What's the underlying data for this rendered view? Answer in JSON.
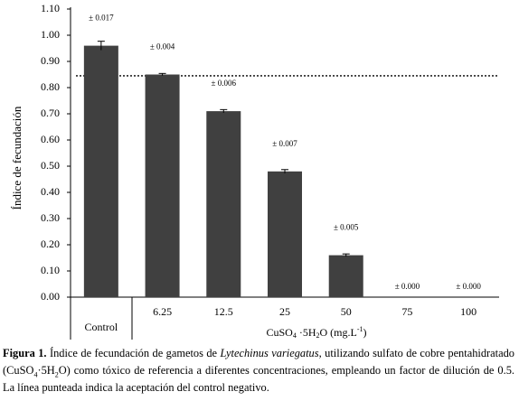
{
  "chart_data": {
    "type": "bar",
    "y_label": "Índice de fecundación",
    "categories": [
      "Control",
      "6.25",
      "12.5",
      "25",
      "50",
      "75",
      "100"
    ],
    "values": [
      0.96,
      0.85,
      0.71,
      0.48,
      0.16,
      0,
      0
    ],
    "errors": [
      0.017,
      0.004,
      0.006,
      0.007,
      0.005,
      0.0,
      0.0
    ],
    "error_labels": [
      "± 0.017",
      "± 0.004",
      "± 0.006",
      "± 0.007",
      "± 0.005",
      "± 0.000",
      "± 0.000"
    ],
    "color": "#404040",
    "reference_line": 0.845,
    "x_group_label": [
      "CuSO",
      "4",
      " ·5H",
      "2",
      "O (mg.L",
      "-1",
      ")"
    ],
    "ylim": [
      0,
      1.1
    ],
    "yticks": [
      {
        "value": 0,
        "label": "0.00"
      },
      {
        "value": 0.1,
        "label": "0.10"
      },
      {
        "value": 0.2,
        "label": "0.20"
      },
      {
        "value": 0.3,
        "label": "0.30"
      },
      {
        "value": 0.4,
        "label": "0.40"
      },
      {
        "value": 0.5,
        "label": "0.50"
      },
      {
        "value": 0.6,
        "label": "0.60"
      },
      {
        "value": 0.7,
        "label": "0.70"
      },
      {
        "value": 0.8,
        "label": "0.80"
      },
      {
        "value": 0.9,
        "label": "0.90"
      },
      {
        "value": 1.0,
        "label": "1.00"
      },
      {
        "value": 1.1,
        "label": "1.10"
      }
    ]
  },
  "caption": [
    "Figura 1.",
    " Índice de fecundación de gametos de ",
    "Lytechinus variegatus",
    ", utilizando sulfato de cobre pentahidratado (CuSO",
    "4",
    "·5H",
    "2",
    "O) como tóxico de referencia a diferentes concentraciones, empleando un factor de dilución de 0.5. La línea punteada indica la aceptación del control negativo."
  ]
}
